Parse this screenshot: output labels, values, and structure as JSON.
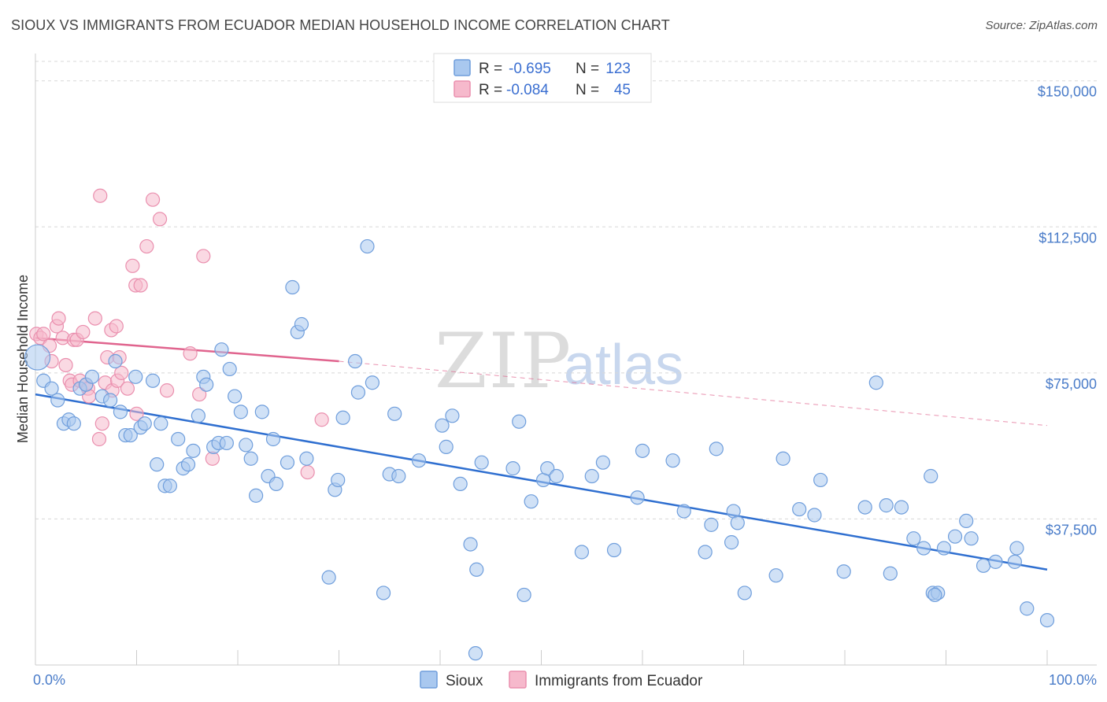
{
  "header": {
    "title": "SIOUX VS IMMIGRANTS FROM ECUADOR MEDIAN HOUSEHOLD INCOME CORRELATION CHART",
    "source": "Source: ZipAtlas.com"
  },
  "watermark": {
    "zip": "ZIP",
    "atlas": "atlas"
  },
  "legend_top": {
    "rows": [
      {
        "r_label": "R =",
        "r_value": "-0.695",
        "n_label": "N =",
        "n_value": "123"
      },
      {
        "r_label": "R =",
        "r_value": "-0.084",
        "n_label": "N =",
        "n_value": "45"
      }
    ]
  },
  "legend_bottom": [
    "Sioux",
    "Immigrants from Ecuador"
  ],
  "colors": {
    "sioux_fill": "#a9c8ef",
    "sioux_stroke": "#6f9edc",
    "sioux_line": "#2f6fd0",
    "ecu_fill": "#f6b9cc",
    "ecu_stroke": "#ea8fae",
    "ecu_line": "#e0648e",
    "grid": "#d8d8d8",
    "axis_text": "#4a7cc9"
  },
  "chart_data": {
    "type": "scatter",
    "title": "SIOUX VS IMMIGRANTS FROM ECUADOR MEDIAN HOUSEHOLD INCOME CORRELATION CHART",
    "xlabel": "",
    "ylabel": "Median Household Income",
    "xlim": [
      0,
      100
    ],
    "ylim": [
      0,
      155000
    ],
    "x_tick_labels": [
      "0.0%",
      "100.0%"
    ],
    "y_ticks": [
      37500,
      75000,
      112500,
      150000
    ],
    "y_tick_labels": [
      "$37,500",
      "$75,000",
      "$112,500",
      "$150,000"
    ],
    "series": [
      {
        "name": "Sioux",
        "r": -0.695,
        "n": 123,
        "trend": {
          "x": [
            0,
            100
          ],
          "y": [
            69500,
            24500
          ]
        },
        "points": [
          [
            0.2,
            79000
          ],
          [
            0.8,
            73000
          ],
          [
            1.6,
            71000
          ],
          [
            2.2,
            68000
          ],
          [
            2.8,
            62000
          ],
          [
            3.3,
            63000
          ],
          [
            3.8,
            62000
          ],
          [
            4.4,
            71000
          ],
          [
            5.0,
            72000
          ],
          [
            5.6,
            74000
          ],
          [
            6.6,
            69000
          ],
          [
            7.4,
            68000
          ],
          [
            7.9,
            78000
          ],
          [
            8.4,
            65000
          ],
          [
            8.9,
            59000
          ],
          [
            9.4,
            59000
          ],
          [
            9.9,
            74000
          ],
          [
            10.4,
            61000
          ],
          [
            10.8,
            62000
          ],
          [
            11.6,
            73000
          ],
          [
            12.0,
            51500
          ],
          [
            12.4,
            62000
          ],
          [
            12.8,
            46000
          ],
          [
            13.3,
            46000
          ],
          [
            14.1,
            58000
          ],
          [
            14.6,
            50500
          ],
          [
            15.1,
            51500
          ],
          [
            15.6,
            55000
          ],
          [
            16.1,
            64000
          ],
          [
            16.6,
            74000
          ],
          [
            16.9,
            72000
          ],
          [
            17.6,
            56000
          ],
          [
            18.1,
            57000
          ],
          [
            18.4,
            81000
          ],
          [
            18.9,
            57000
          ],
          [
            19.2,
            76000
          ],
          [
            19.7,
            69000
          ],
          [
            20.3,
            65000
          ],
          [
            20.8,
            56500
          ],
          [
            21.3,
            53000
          ],
          [
            21.8,
            43500
          ],
          [
            22.4,
            65000
          ],
          [
            23.0,
            48500
          ],
          [
            23.5,
            58000
          ],
          [
            23.8,
            46500
          ],
          [
            24.9,
            52000
          ],
          [
            25.4,
            97000
          ],
          [
            25.9,
            85500
          ],
          [
            26.3,
            87500
          ],
          [
            26.8,
            53000
          ],
          [
            29.0,
            22500
          ],
          [
            29.6,
            45000
          ],
          [
            29.9,
            47500
          ],
          [
            30.4,
            63500
          ],
          [
            31.6,
            78000
          ],
          [
            31.9,
            70000
          ],
          [
            32.8,
            107500
          ],
          [
            33.3,
            72500
          ],
          [
            34.4,
            18500
          ],
          [
            35.0,
            49000
          ],
          [
            35.5,
            64500
          ],
          [
            35.9,
            48500
          ],
          [
            37.9,
            52500
          ],
          [
            40.2,
            61500
          ],
          [
            40.6,
            56000
          ],
          [
            41.2,
            64000
          ],
          [
            42.0,
            46500
          ],
          [
            43.5,
            3000
          ],
          [
            43.6,
            24500
          ],
          [
            43.0,
            31000
          ],
          [
            44.1,
            52000
          ],
          [
            47.2,
            50500
          ],
          [
            47.8,
            62500
          ],
          [
            48.3,
            18000
          ],
          [
            49.0,
            42000
          ],
          [
            50.2,
            47500
          ],
          [
            50.6,
            50500
          ],
          [
            51.5,
            48500
          ],
          [
            54.0,
            29000
          ],
          [
            55.0,
            48500
          ],
          [
            56.1,
            52000
          ],
          [
            57.2,
            29500
          ],
          [
            59.5,
            43000
          ],
          [
            60.0,
            55000
          ],
          [
            63.0,
            52500
          ],
          [
            64.1,
            39500
          ],
          [
            66.2,
            29000
          ],
          [
            66.8,
            36000
          ],
          [
            67.3,
            55500
          ],
          [
            68.8,
            31500
          ],
          [
            69.0,
            39500
          ],
          [
            69.4,
            36500
          ],
          [
            70.1,
            18500
          ],
          [
            73.2,
            23000
          ],
          [
            73.9,
            53000
          ],
          [
            75.5,
            40000
          ],
          [
            77.0,
            38500
          ],
          [
            77.6,
            47500
          ],
          [
            79.9,
            24000
          ],
          [
            82.0,
            40500
          ],
          [
            83.1,
            72500
          ],
          [
            84.1,
            41000
          ],
          [
            84.5,
            23500
          ],
          [
            85.6,
            40500
          ],
          [
            86.8,
            32500
          ],
          [
            87.8,
            30000
          ],
          [
            88.5,
            48500
          ],
          [
            88.7,
            18500
          ],
          [
            89.2,
            18500
          ],
          [
            88.9,
            18000
          ],
          [
            89.8,
            30000
          ],
          [
            90.9,
            33000
          ],
          [
            92.0,
            37000
          ],
          [
            92.5,
            32500
          ],
          [
            93.7,
            25500
          ],
          [
            94.9,
            26500
          ],
          [
            96.8,
            26500
          ],
          [
            97.0,
            30000
          ],
          [
            98.0,
            14500
          ],
          [
            100.0,
            11500
          ]
        ]
      },
      {
        "name": "Immigrants from Ecuador",
        "r": -0.084,
        "n": 45,
        "trend": {
          "x": [
            0,
            30
          ],
          "y": [
            84000,
            78000
          ]
        },
        "trend_extension": {
          "x": [
            30,
            100
          ],
          "y": [
            78000,
            61500
          ]
        },
        "points": [
          [
            0.1,
            85000
          ],
          [
            0.5,
            84000
          ],
          [
            0.8,
            85000
          ],
          [
            1.4,
            82000
          ],
          [
            1.6,
            78000
          ],
          [
            2.1,
            87000
          ],
          [
            2.3,
            89000
          ],
          [
            2.7,
            84000
          ],
          [
            3.0,
            77000
          ],
          [
            3.4,
            73000
          ],
          [
            3.6,
            72000
          ],
          [
            3.8,
            83500
          ],
          [
            4.1,
            83500
          ],
          [
            4.4,
            73000
          ],
          [
            4.7,
            85500
          ],
          [
            5.0,
            72000
          ],
          [
            5.2,
            71000
          ],
          [
            5.3,
            69000
          ],
          [
            5.9,
            89000
          ],
          [
            6.3,
            58000
          ],
          [
            6.4,
            120500
          ],
          [
            6.6,
            62000
          ],
          [
            6.9,
            72500
          ],
          [
            7.1,
            79000
          ],
          [
            7.5,
            86000
          ],
          [
            7.6,
            70500
          ],
          [
            8.0,
            87000
          ],
          [
            8.1,
            73000
          ],
          [
            8.5,
            75000
          ],
          [
            8.3,
            79000
          ],
          [
            9.1,
            71000
          ],
          [
            9.6,
            102500
          ],
          [
            9.9,
            97500
          ],
          [
            10.4,
            97500
          ],
          [
            10.0,
            64500
          ],
          [
            11.0,
            107500
          ],
          [
            11.6,
            119500
          ],
          [
            12.3,
            114500
          ],
          [
            13.0,
            70500
          ],
          [
            15.3,
            80000
          ],
          [
            16.2,
            69500
          ],
          [
            16.6,
            105000
          ],
          [
            17.5,
            53000
          ],
          [
            28.3,
            63000
          ],
          [
            26.9,
            49500
          ]
        ]
      }
    ]
  }
}
